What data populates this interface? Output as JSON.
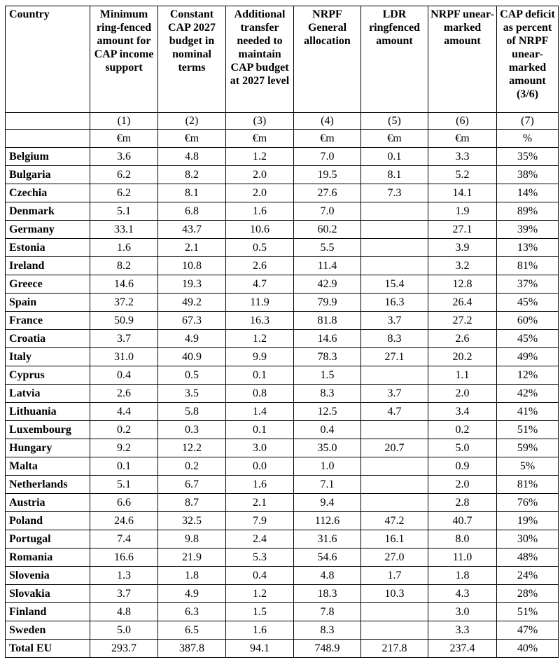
{
  "table": {
    "columns": [
      {
        "label": "Country",
        "number": "",
        "unit": ""
      },
      {
        "label": "Minimum ring-fenced amount for CAP income support",
        "number": "(1)",
        "unit": "€m"
      },
      {
        "label": "Constant CAP 2027 budget in nominal terms",
        "number": "(2)",
        "unit": "€m"
      },
      {
        "label": "Additional transfer needed to maintain CAP budget at 2027 level",
        "number": "(3)",
        "unit": "€m"
      },
      {
        "label": "NRPF General allocation",
        "number": "(4)",
        "unit": "€m"
      },
      {
        "label": "LDR ringfenced amount",
        "number": "(5)",
        "unit": "€m"
      },
      {
        "label": "NRPF unear-marked amount",
        "number": "(6)",
        "unit": "€m"
      },
      {
        "label": "CAP deficit as percent of NRPF unear-marked amount (3/6)",
        "number": "(7)",
        "unit": "%"
      }
    ],
    "rows": [
      {
        "country": "Belgium",
        "values": [
          "3.6",
          "4.8",
          "1.2",
          "7.0",
          "0.1",
          "3.3",
          "35%"
        ]
      },
      {
        "country": "Bulgaria",
        "values": [
          "6.2",
          "8.2",
          "2.0",
          "19.5",
          "8.1",
          "5.2",
          "38%"
        ]
      },
      {
        "country": "Czechia",
        "values": [
          "6.2",
          "8.1",
          "2.0",
          "27.6",
          "7.3",
          "14.1",
          "14%"
        ]
      },
      {
        "country": "Denmark",
        "values": [
          "5.1",
          "6.8",
          "1.6",
          "7.0",
          "",
          "1.9",
          "89%"
        ]
      },
      {
        "country": "Germany",
        "values": [
          "33.1",
          "43.7",
          "10.6",
          "60.2",
          "",
          "27.1",
          "39%"
        ]
      },
      {
        "country": "Estonia",
        "values": [
          "1.6",
          "2.1",
          "0.5",
          "5.5",
          "",
          "3.9",
          "13%"
        ]
      },
      {
        "country": "Ireland",
        "values": [
          "8.2",
          "10.8",
          "2.6",
          "11.4",
          "",
          "3.2",
          "81%"
        ]
      },
      {
        "country": "Greece",
        "values": [
          "14.6",
          "19.3",
          "4.7",
          "42.9",
          "15.4",
          "12.8",
          "37%"
        ]
      },
      {
        "country": "Spain",
        "values": [
          "37.2",
          "49.2",
          "11.9",
          "79.9",
          "16.3",
          "26.4",
          "45%"
        ]
      },
      {
        "country": "France",
        "values": [
          "50.9",
          "67.3",
          "16.3",
          "81.8",
          "3.7",
          "27.2",
          "60%"
        ]
      },
      {
        "country": "Croatia",
        "values": [
          "3.7",
          "4.9",
          "1.2",
          "14.6",
          "8.3",
          "2.6",
          "45%"
        ]
      },
      {
        "country": "Italy",
        "values": [
          "31.0",
          "40.9",
          "9.9",
          "78.3",
          "27.1",
          "20.2",
          "49%"
        ]
      },
      {
        "country": "Cyprus",
        "values": [
          "0.4",
          "0.5",
          "0.1",
          "1.5",
          "",
          "1.1",
          "12%"
        ]
      },
      {
        "country": "Latvia",
        "values": [
          "2.6",
          "3.5",
          "0.8",
          "8.3",
          "3.7",
          "2.0",
          "42%"
        ]
      },
      {
        "country": "Lithuania",
        "values": [
          "4.4",
          "5.8",
          "1.4",
          "12.5",
          "4.7",
          "3.4",
          "41%"
        ]
      },
      {
        "country": "Luxembourg",
        "values": [
          "0.2",
          "0.3",
          "0.1",
          "0.4",
          "",
          "0.2",
          "51%"
        ]
      },
      {
        "country": "Hungary",
        "values": [
          "9.2",
          "12.2",
          "3.0",
          "35.0",
          "20.7",
          "5.0",
          "59%"
        ]
      },
      {
        "country": "Malta",
        "values": [
          "0.1",
          "0.2",
          "0.0",
          "1.0",
          "",
          "0.9",
          "5%"
        ]
      },
      {
        "country": "Netherlands",
        "values": [
          "5.1",
          "6.7",
          "1.6",
          "7.1",
          "",
          "2.0",
          "81%"
        ]
      },
      {
        "country": "Austria",
        "values": [
          "6.6",
          "8.7",
          "2.1",
          "9.4",
          "",
          "2.8",
          "76%"
        ]
      },
      {
        "country": "Poland",
        "values": [
          "24.6",
          "32.5",
          "7.9",
          "112.6",
          "47.2",
          "40.7",
          "19%"
        ]
      },
      {
        "country": "Portugal",
        "values": [
          "7.4",
          "9.8",
          "2.4",
          "31.6",
          "16.1",
          "8.0",
          "30%"
        ]
      },
      {
        "country": "Romania",
        "values": [
          "16.6",
          "21.9",
          "5.3",
          "54.6",
          "27.0",
          "11.0",
          "48%"
        ]
      },
      {
        "country": "Slovenia",
        "values": [
          "1.3",
          "1.8",
          "0.4",
          "4.8",
          "1.7",
          "1.8",
          "24%"
        ]
      },
      {
        "country": "Slovakia",
        "values": [
          "3.7",
          "4.9",
          "1.2",
          "18.3",
          "10.3",
          "4.3",
          "28%"
        ]
      },
      {
        "country": "Finland",
        "values": [
          "4.8",
          "6.3",
          "1.5",
          "7.8",
          "",
          "3.0",
          "51%"
        ]
      },
      {
        "country": "Sweden",
        "values": [
          "5.0",
          "6.5",
          "1.6",
          "8.3",
          "",
          "3.3",
          "47%"
        ]
      },
      {
        "country": "Total EU",
        "values": [
          "293.7",
          "387.8",
          "94.1",
          "748.9",
          "217.8",
          "237.4",
          "40%"
        ],
        "is_total": true
      }
    ],
    "colors": {
      "border": "#000000",
      "text": "#000000",
      "background": "#ffffff"
    }
  }
}
